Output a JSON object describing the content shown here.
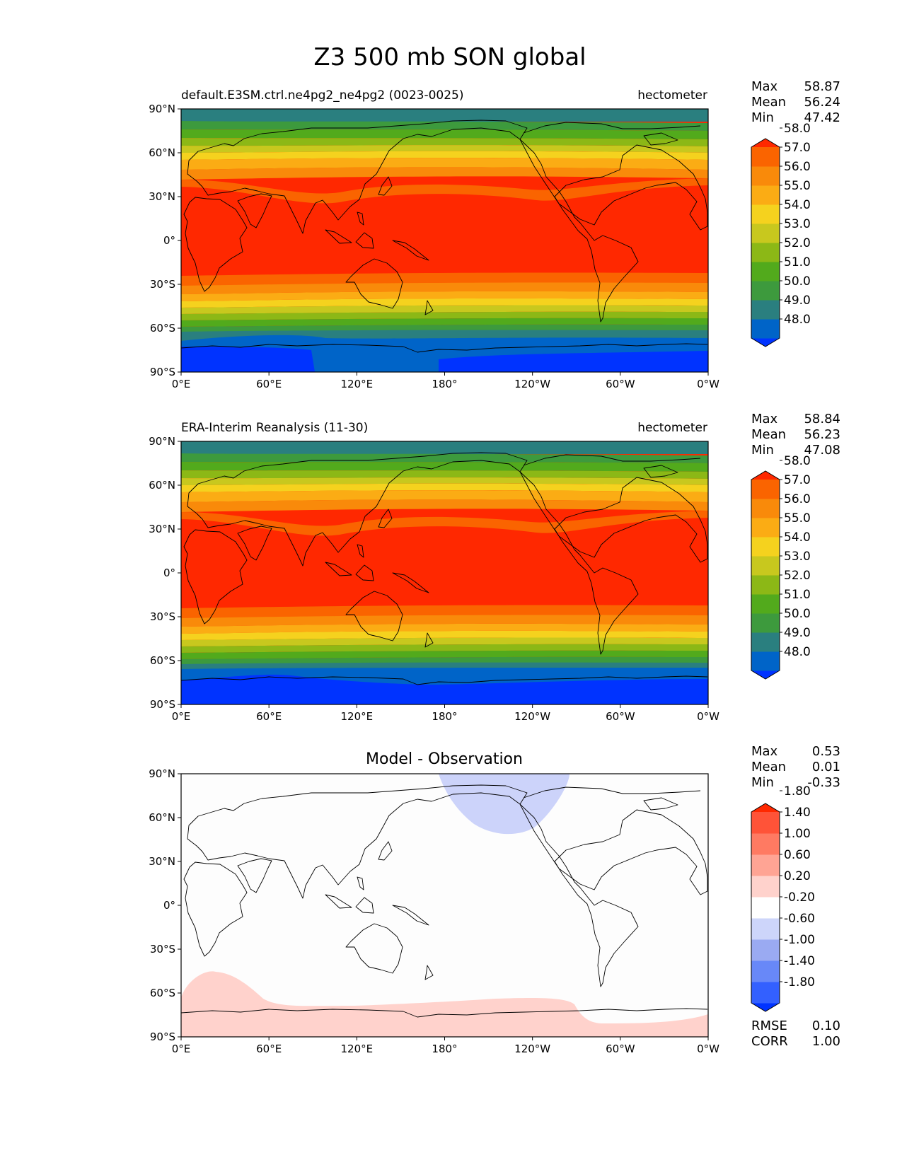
{
  "figure": {
    "title": "Z3 500 mb SON global"
  },
  "axis_ticks": {
    "x": [
      "0°E",
      "60°E",
      "120°E",
      "180°",
      "120°W",
      "60°W",
      "0°W"
    ],
    "y": [
      "90°N",
      "60°N",
      "30°N",
      "0°",
      "30°S",
      "60°S",
      "90°S"
    ]
  },
  "stat_labels": {
    "max": "Max",
    "mean": "Mean",
    "min": "Min",
    "rmse": "RMSE",
    "corr": "CORR"
  },
  "panels": [
    {
      "title_left": "default.E3SM.ctrl.ne4pg2_ne4pg2 (0023-0025)",
      "title_center": "",
      "title_right": "hectometer",
      "stats": {
        "max": "58.87",
        "mean": "56.24",
        "min": "47.42"
      },
      "colorbar": {
        "colors": [
          "#0033ff",
          "#0064c8",
          "#2a7f7f",
          "#3d9a3d",
          "#52aa1c",
          "#8cb816",
          "#c8c81e",
          "#f5d21e",
          "#fbac14",
          "#f98a0a",
          "#fa6400",
          "#ff2800"
        ],
        "labels": [
          "48.0",
          "49.0",
          "50.0",
          "51.0",
          "52.0",
          "53.0",
          "54.0",
          "55.0",
          "56.0",
          "57.0",
          "58.0"
        ]
      }
    },
    {
      "title_left": "ERA-Interim Reanalysis (11-30)",
      "title_center": "",
      "title_right": "hectometer",
      "stats": {
        "max": "58.84",
        "mean": "56.23",
        "min": "47.08"
      },
      "colorbar": {
        "colors": [
          "#0033ff",
          "#0064c8",
          "#2a7f7f",
          "#3d9a3d",
          "#52aa1c",
          "#8cb816",
          "#c8c81e",
          "#f5d21e",
          "#fbac14",
          "#f98a0a",
          "#fa6400",
          "#ff2800"
        ],
        "labels": [
          "48.0",
          "49.0",
          "50.0",
          "51.0",
          "52.0",
          "53.0",
          "54.0",
          "55.0",
          "56.0",
          "57.0",
          "58.0"
        ]
      }
    },
    {
      "title_left": "",
      "title_center": "Model - Observation",
      "title_right": "",
      "stats": {
        "max": "0.53",
        "mean": "0.01",
        "min": "-0.33"
      },
      "extra_stats": {
        "rmse": "0.10",
        "corr": "1.00"
      },
      "colorbar": {
        "colors": [
          "#0033ff",
          "#3360ff",
          "#6888f8",
          "#9aaaf2",
          "#cdd5fa",
          "#ffffff",
          "#ffd2cc",
          "#ffa494",
          "#ff7a62",
          "#ff5338",
          "#ff2800"
        ],
        "labels": [
          "-1.80",
          "-1.40",
          "-1.00",
          "-0.60",
          "-0.20",
          "0.20",
          "0.60",
          "1.00",
          "1.40",
          "1.80"
        ]
      }
    }
  ]
}
